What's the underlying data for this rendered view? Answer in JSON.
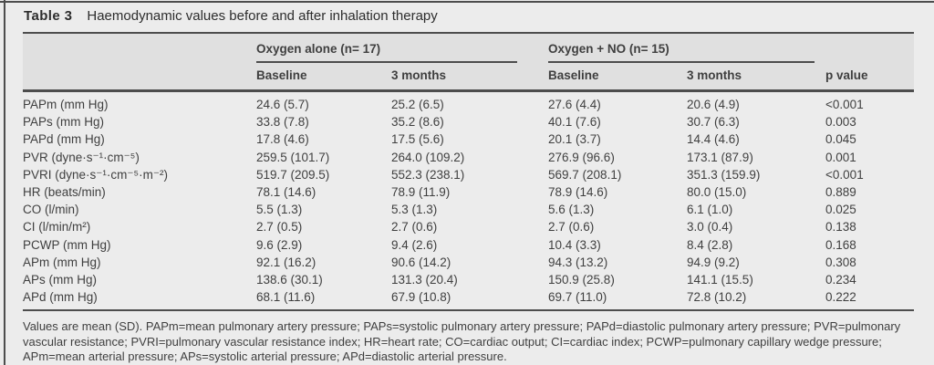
{
  "page": {
    "title_label": "Table 3",
    "title_text": "Haemodynamic values before and after inhalation therapy"
  },
  "table": {
    "groups": [
      {
        "label": "Oxygen alone (n= 17)"
      },
      {
        "label": "Oxygen + NO (n= 15)"
      }
    ],
    "subheaders": [
      "Baseline",
      "3 months",
      "Baseline",
      "3 months"
    ],
    "p_value_header": "p value",
    "rows": [
      {
        "label": "PAPm (mm Hg)",
        "values": [
          "24.6 (5.7)",
          "25.2 (6.5)",
          "27.6 (4.4)",
          "20.6 (4.9)",
          "<0.001"
        ]
      },
      {
        "label": "PAPs (mm Hg)",
        "values": [
          "33.8 (7.8)",
          "35.2 (8.6)",
          "40.1 (7.6)",
          "30.7 (6.3)",
          "0.003"
        ]
      },
      {
        "label": "PAPd (mm Hg)",
        "values": [
          "17.8 (4.6)",
          "17.5 (5.6)",
          "20.1 (3.7)",
          "14.4 (4.6)",
          "0.045"
        ]
      },
      {
        "label": "PVR (dyne·s⁻¹·cm⁻⁵)",
        "values": [
          "259.5 (101.7)",
          "264.0 (109.2)",
          "276.9 (96.6)",
          "173.1 (87.9)",
          "0.001"
        ]
      },
      {
        "label": "PVRI (dyne·s⁻¹·cm⁻⁵·m⁻²)",
        "values": [
          "519.7 (209.5)",
          "552.3 (238.1)",
          "569.7 (208.1)",
          "351.3 (159.9)",
          "<0.001"
        ]
      },
      {
        "label": "HR (beats/min)",
        "values": [
          "78.1 (14.6)",
          "78.9 (11.9)",
          "78.9 (14.6)",
          "80.0 (15.0)",
          "0.889"
        ]
      },
      {
        "label": "CO (l/min)",
        "values": [
          "5.5 (1.3)",
          "5.3 (1.3)",
          "5.6 (1.3)",
          "6.1 (1.0)",
          "0.025"
        ]
      },
      {
        "label": "CI (l/min/m²)",
        "values": [
          "2.7 (0.5)",
          "2.7 (0.6)",
          "2.7 (0.6)",
          "3.0 (0.4)",
          "0.138"
        ]
      },
      {
        "label": "PCWP (mm Hg)",
        "values": [
          "9.6 (2.9)",
          "9.4 (2.6)",
          "10.4 (3.3)",
          "8.4 (2.8)",
          "0.168"
        ]
      },
      {
        "label": "APm (mm Hg)",
        "values": [
          "92.1 (16.2)",
          "90.6 (14.2)",
          "94.3 (13.2)",
          "94.9 (9.2)",
          "0.308"
        ]
      },
      {
        "label": "APs (mm Hg)",
        "values": [
          "138.6 (30.1)",
          "131.3 (20.4)",
          "150.9 (25.8)",
          "141.1 (15.5)",
          "0.234"
        ]
      },
      {
        "label": "APd (mm Hg)",
        "values": [
          "68.1 (11.6)",
          "67.9 (10.8)",
          "69.7 (11.0)",
          "72.8 (10.2)",
          "0.222"
        ]
      }
    ],
    "footnote": "Values are mean (SD). PAPm=mean pulmonary artery pressure; PAPs=systolic pulmonary artery pressure; PAPd=diastolic pulmonary artery pressure; PVR=pulmonary vascular resistance; PVRI=pulmonary vascular resistance index; HR=heart rate; CO=cardiac output; CI=cardiac index; PCWP=pulmonary capillary wedge pressure; APm=mean arterial pressure; APs=systolic arterial pressure; APd=diastolic arterial pressure."
  }
}
